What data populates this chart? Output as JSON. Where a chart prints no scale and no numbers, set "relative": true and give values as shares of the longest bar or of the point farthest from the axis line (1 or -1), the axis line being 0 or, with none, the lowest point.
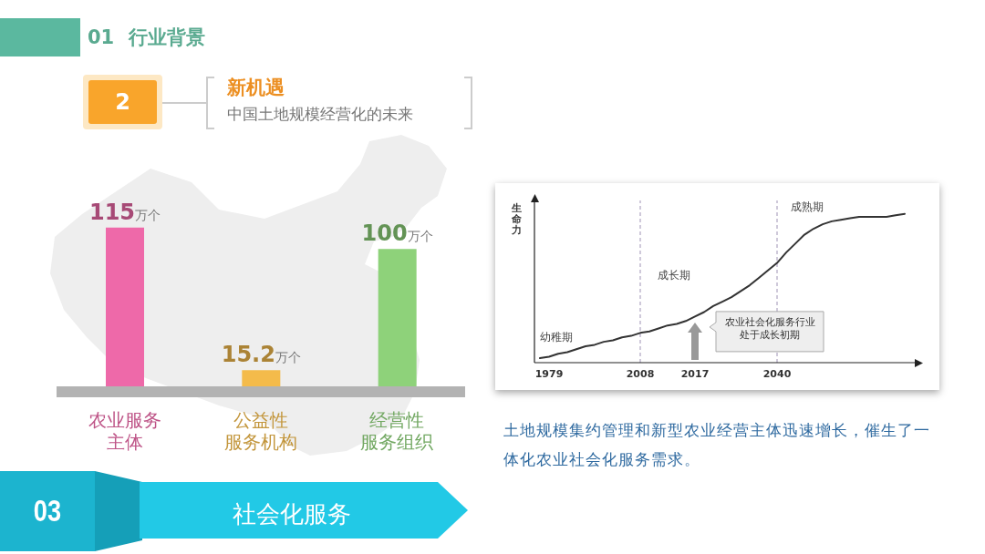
{
  "chart_data": [
    {
      "type": "bar",
      "title": "新机遇",
      "subtitle": "中国土地规模经营化的未来",
      "categories": [
        "农业服务主体",
        "公益性服务机构",
        "经营性服务组织"
      ],
      "values": [
        115,
        15.2,
        100
      ],
      "colors": [
        "#ee69a9",
        "#f4bb4b",
        "#8ed27a"
      ],
      "value_labels": [
        "115万个",
        "15.2万个",
        "100万个"
      ],
      "annotations": [
        "01 行业背景",
        "2",
        "03",
        "社会化服务"
      ]
    },
    {
      "type": "line",
      "relative": true,
      "ylabel": "生命力",
      "categories": [
        null,
        "1979",
        null,
        null,
        null,
        null,
        null,
        null,
        null,
        null,
        null,
        "2008",
        null,
        null,
        null,
        null,
        null,
        "2017",
        null,
        null,
        null,
        null,
        null,
        null,
        null,
        null,
        "2040",
        null,
        null,
        null,
        null,
        null,
        null,
        null,
        null,
        null,
        null,
        null,
        null,
        null,
        null
      ],
      "values": [
        0.03,
        0.04,
        0.06,
        0.07,
        0.09,
        0.11,
        0.12,
        0.14,
        0.15,
        0.17,
        0.18,
        0.2,
        0.21,
        0.23,
        0.25,
        0.26,
        0.28,
        0.31,
        0.34,
        0.38,
        0.41,
        0.44,
        0.48,
        0.52,
        0.57,
        0.62,
        0.67,
        0.74,
        0.8,
        0.86,
        0.9,
        0.93,
        0.95,
        0.96,
        0.97,
        0.98,
        0.98,
        0.98,
        0.98,
        0.99,
        1
      ],
      "color": "#333333",
      "ref_lines": [
        {
          "axis": "x",
          "value": "2008",
          "color": "#9f93b5",
          "line_style": "dashed"
        },
        {
          "axis": "x",
          "value": "2040",
          "color": "#9f93b5",
          "line_style": "dashed"
        }
      ],
      "annotations": [
        "幼稚期",
        "成长期",
        "成熟期",
        {
          "text": "农业社会化服务行业处于成长初期",
          "x": "2017",
          "y": 0.27
        },
        "土地规模集约管理和新型农业经营主体迅速增长，催生了一体化农业社会化服务需求。"
      ]
    }
  ]
}
